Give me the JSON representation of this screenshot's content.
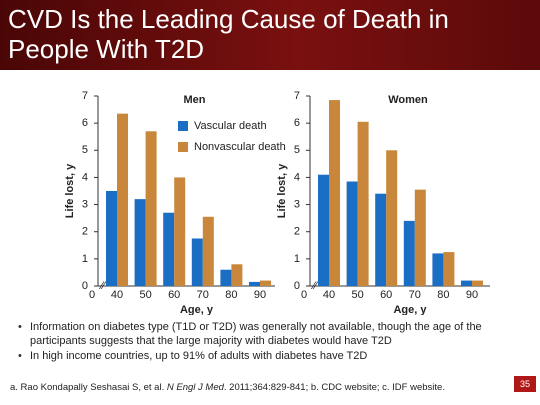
{
  "header": {
    "title": "CVD Is the Leading Cause of Death in People With T2D"
  },
  "chart_data": [
    {
      "type": "bar",
      "title": "Men",
      "x_label": "Age, y",
      "y_label": "Life lost, y",
      "x_origin_label": "0",
      "categories": [
        "40",
        "50",
        "60",
        "70",
        "80",
        "90"
      ],
      "series": [
        {
          "name": "Vascular death",
          "color": "#1a6fc4",
          "values": [
            3.5,
            3.2,
            2.7,
            1.75,
            0.6,
            0.15
          ]
        },
        {
          "name": "Nonvascular death",
          "color": "#c8873a",
          "values": [
            6.35,
            5.7,
            4.0,
            2.55,
            0.8,
            0.2
          ]
        }
      ],
      "ylim": [
        0,
        7
      ],
      "yticks": [
        0,
        1,
        2,
        3,
        4,
        5,
        6,
        7
      ],
      "legend": "right"
    },
    {
      "type": "bar",
      "title": "Women",
      "x_label": "Age, y",
      "y_label": "Life lost, y",
      "x_origin_label": "0",
      "categories": [
        "40",
        "50",
        "60",
        "70",
        "80",
        "90"
      ],
      "series": [
        {
          "color": "#1a6fc4",
          "values": [
            4.1,
            3.85,
            3.4,
            2.4,
            1.2,
            0.2
          ]
        },
        {
          "color": "#c8873a",
          "values": [
            6.85,
            6.05,
            5.0,
            3.55,
            1.25,
            0.2
          ]
        }
      ],
      "ylim": [
        0,
        7
      ],
      "yticks": [
        0,
        1,
        2,
        3,
        4,
        5,
        6,
        7
      ]
    }
  ],
  "bullets": [
    "Information on diabetes type (T1D or T2D) was generally not available, though the age of the participants suggests that the large majority with diabetes would have T2D",
    "In high income countries, up to 91% of adults with diabetes have T2D"
  ],
  "footnote": {
    "before": "a. Rao Kondapally Seshasai S, et al. ",
    "journal": "N Engl J Med",
    "after": ". 2011;364:829-841; b. CDC website; c. IDF website."
  },
  "page_number": "35"
}
